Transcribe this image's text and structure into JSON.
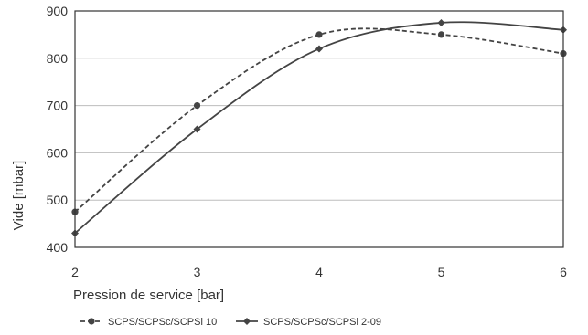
{
  "chart_data": {
    "type": "line",
    "title": "",
    "xlabel": "Pression de service [bar]",
    "ylabel": "Vide [mbar]",
    "x": [
      2,
      3,
      4,
      5,
      6
    ],
    "xlim": [
      2,
      6
    ],
    "ylim": [
      400,
      900
    ],
    "yticks": [
      400,
      500,
      600,
      700,
      800,
      900
    ],
    "grid": "horizontal",
    "legend_position": "bottom-left",
    "series": [
      {
        "name": "SCPS/SCPSc/SCPSi 10",
        "values": [
          475,
          700,
          850,
          850,
          810
        ],
        "line_style": "dashed",
        "marker": "circle",
        "color": "#444444"
      },
      {
        "name": "SCPS/SCPSc/SCPSi 2-09",
        "values": [
          430,
          650,
          820,
          875,
          860
        ],
        "line_style": "solid",
        "marker": "diamond",
        "color": "#444444"
      }
    ]
  }
}
